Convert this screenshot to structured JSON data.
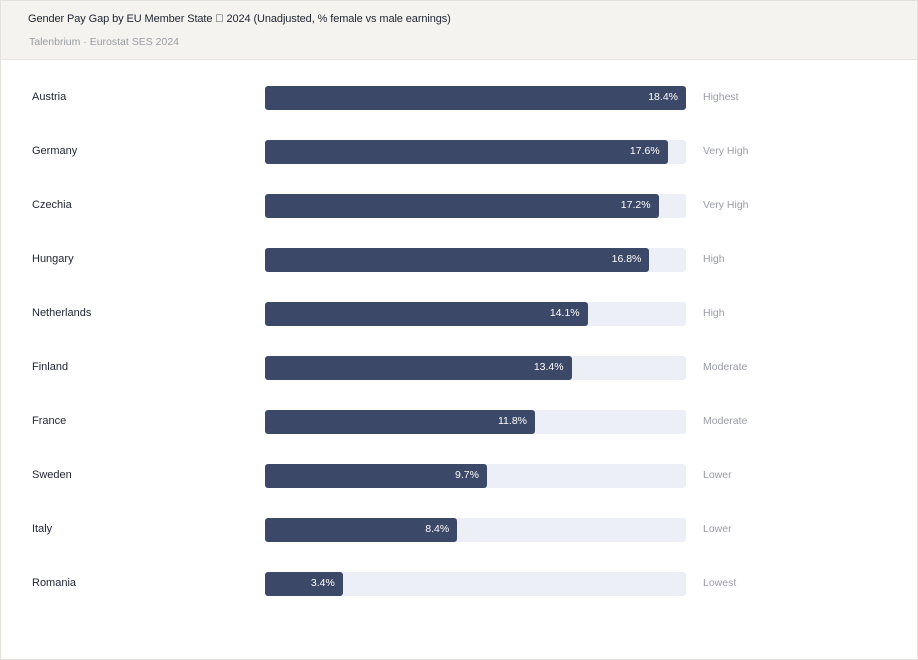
{
  "header": {
    "title": "Gender Pay Gap by EU Member State \u0000 2024 (Unadjusted, % female vs male earnings)",
    "subtitle": "Talenbrium · Eurostat SES 2024"
  },
  "colors": {
    "bar": "#3c4868",
    "track": "#eceff6",
    "header_bg": "#f4f3ef"
  },
  "chart_data": {
    "type": "bar",
    "orientation": "horizontal",
    "title": "Gender Pay Gap by EU Member State \u0000 2024 (Unadjusted, % female vs male earnings)",
    "xlim": [
      0,
      18.4
    ],
    "categories": [
      "Austria",
      "Germany",
      "Czechia",
      "Hungary",
      "Netherlands",
      "Finland",
      "France",
      "Sweden",
      "Italy",
      "Romania"
    ],
    "values": [
      18.4,
      17.6,
      17.2,
      16.8,
      14.1,
      13.4,
      11.8,
      9.7,
      8.4,
      3.4
    ],
    "value_labels": [
      "18.4%",
      "17.6%",
      "17.2%",
      "16.8%",
      "14.1%",
      "13.4%",
      "11.8%",
      "9.7%",
      "8.4%",
      "3.4%"
    ],
    "tiers": [
      "Highest",
      "Very High",
      "Very High",
      "High",
      "High",
      "Moderate",
      "Moderate",
      "Lower",
      "Lower",
      "Lowest"
    ]
  }
}
